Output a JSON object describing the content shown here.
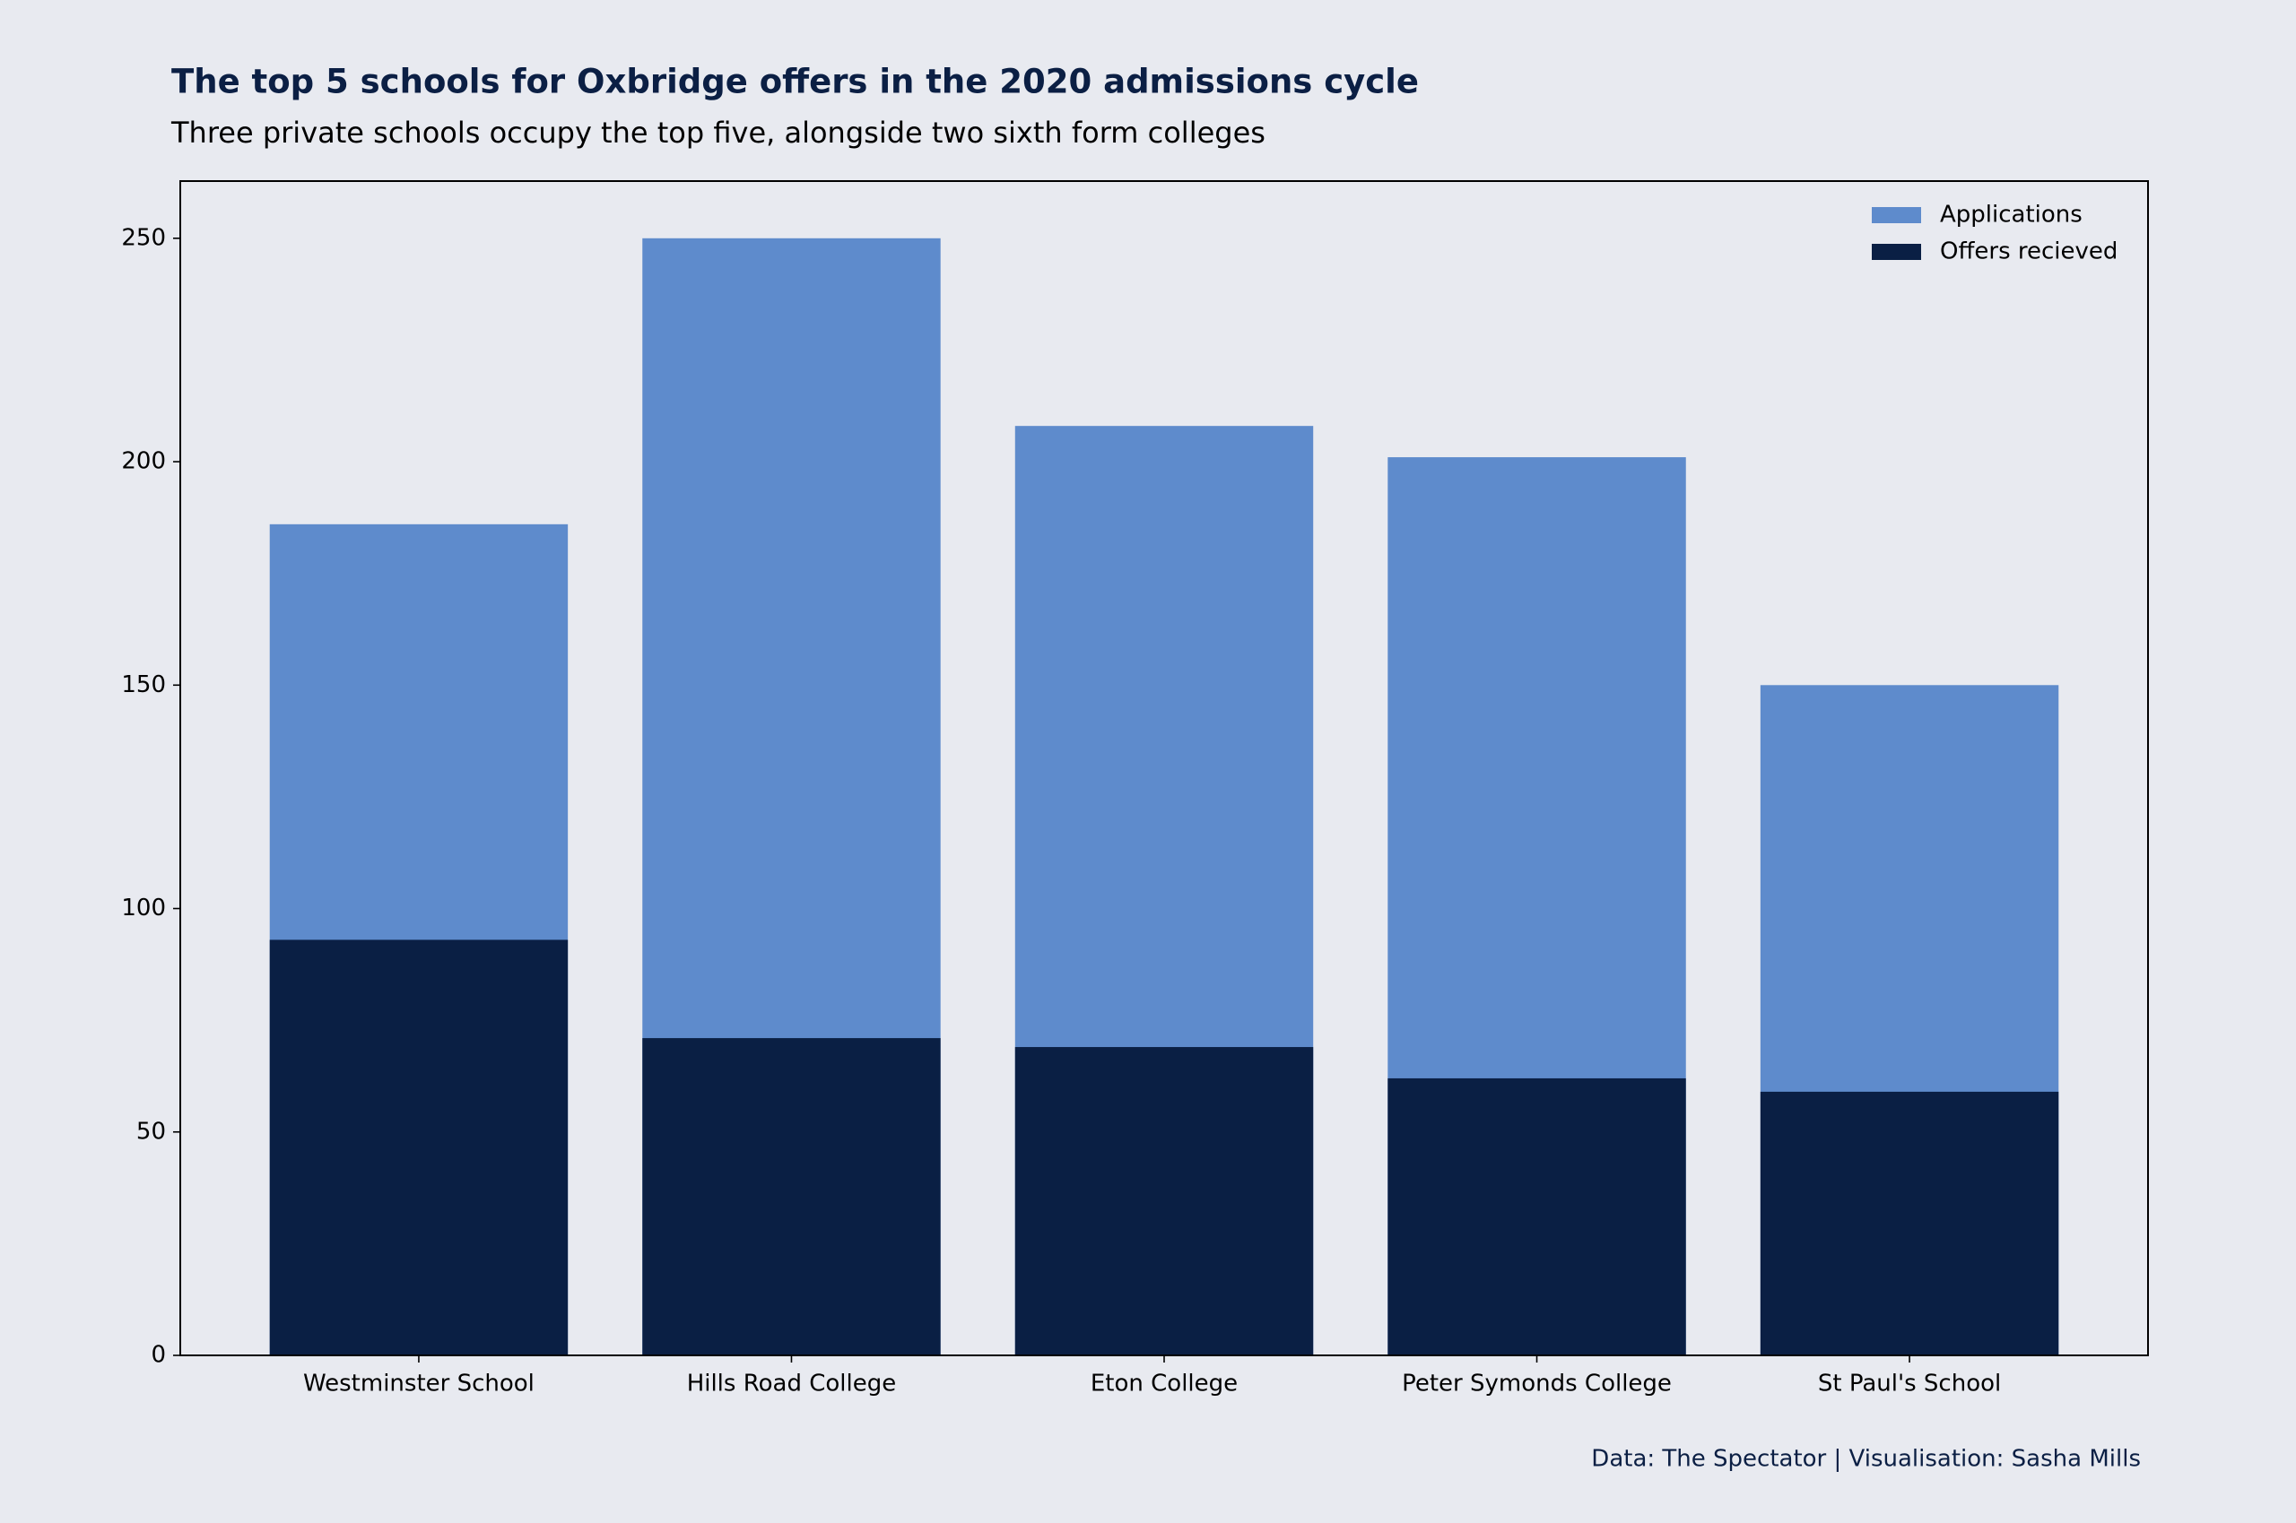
{
  "chart_data": {
    "type": "bar",
    "title": "The top 5 schools for Oxbridge offers in the 2020 admissions cycle",
    "subtitle": "Three private schools occupy the top five, alongside two sixth form colleges",
    "source": "Data: The Spectator | Visualisation: Sasha Mills",
    "categories": [
      "Westminster School",
      "Hills Road College",
      "Eton College",
      "Peter Symonds College",
      "St Paul's School"
    ],
    "series": [
      {
        "name": "Applications",
        "color": "#5e8bcc",
        "values": [
          186,
          250,
          208,
          201,
          150
        ]
      },
      {
        "name": "Offers recieved",
        "color": "#0a1f44",
        "values": [
          93,
          71,
          69,
          62,
          59
        ]
      }
    ],
    "ylim": [
      0,
      262.8
    ],
    "yticks": [
      0,
      50,
      100,
      150,
      200,
      250
    ],
    "legend": "upper right"
  }
}
